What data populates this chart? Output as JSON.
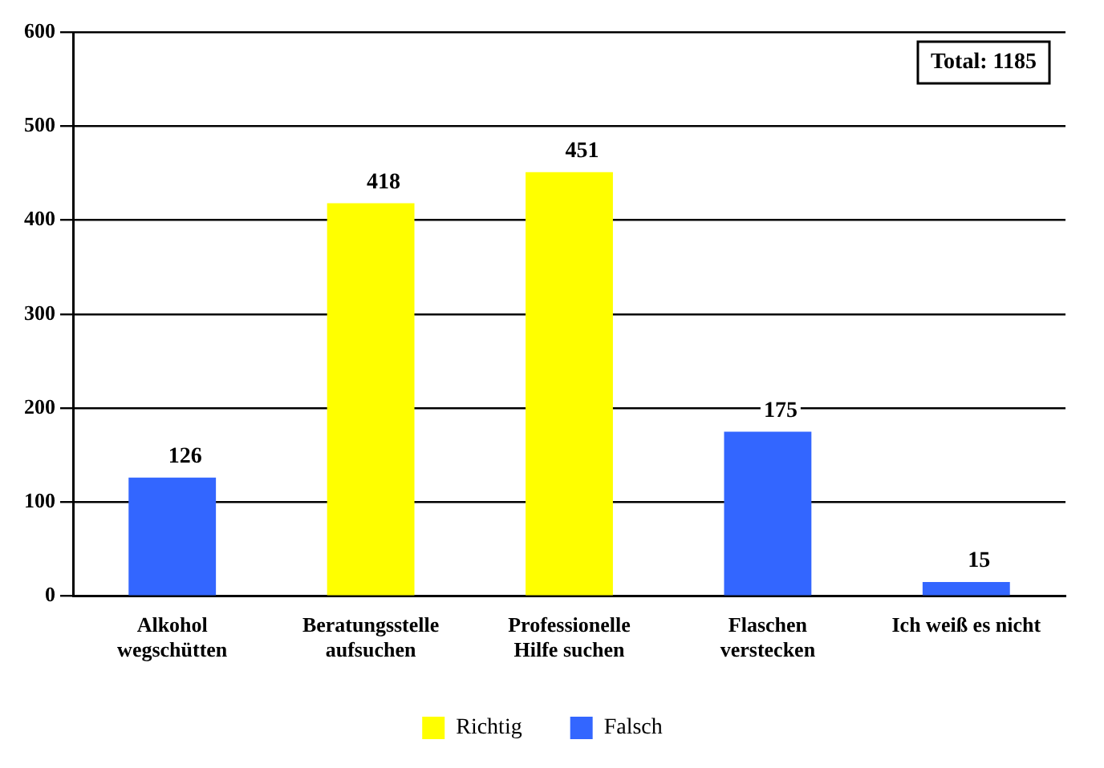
{
  "chart_data": {
    "type": "bar",
    "categories": [
      "Alkohol\nwegschütten",
      "Beratungsstelle\naufsuchen",
      "Professionelle\nHilfe suchen",
      "Flaschen\nverstecken",
      "Ich weiß es nicht"
    ],
    "series": [
      {
        "name": "Richtig",
        "color": "#ffff00",
        "values": [
          null,
          418,
          451,
          null,
          null
        ]
      },
      {
        "name": "Falsch",
        "color": "#3366ff",
        "values": [
          126,
          null,
          null,
          175,
          15
        ]
      }
    ],
    "ylim": [
      0,
      600
    ],
    "yticks": [
      0,
      100,
      200,
      300,
      400,
      500,
      600
    ],
    "grid": "y",
    "legend": "bottom",
    "data_labels": true,
    "annotations": [
      "Total: 1185"
    ]
  }
}
